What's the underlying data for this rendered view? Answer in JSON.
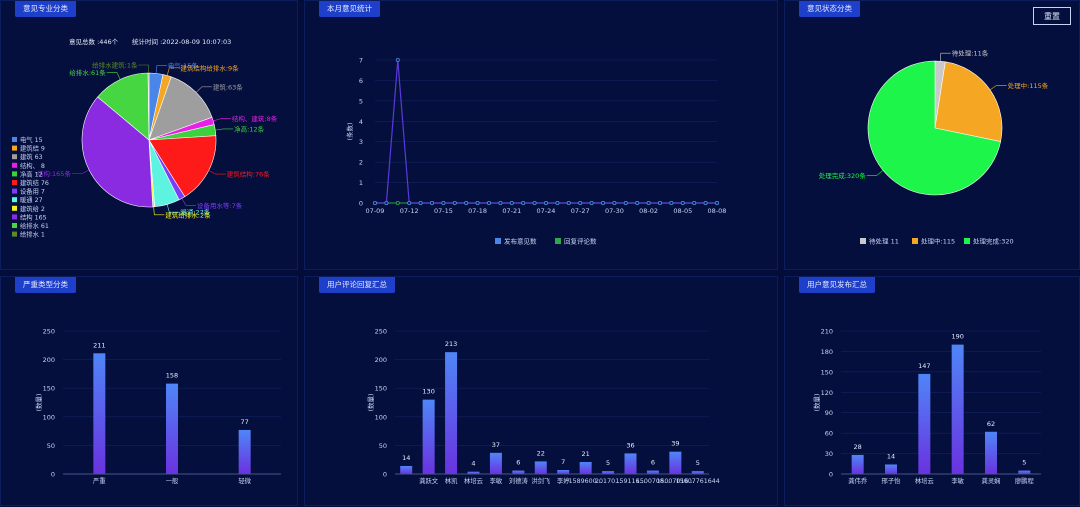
{
  "back_button": "重置",
  "panels": {
    "p1": {
      "title": "意见专业分类",
      "stat_total": "意见总数 :446个",
      "stat_time": "统计时间 :2022-08-09 10:07:03"
    },
    "p2": {
      "title": "本月意见统计"
    },
    "p3": {
      "title": "意见状态分类"
    },
    "p4": {
      "title": "严重类型分类"
    },
    "p5": {
      "title": "用户评论回复汇总"
    },
    "p6": {
      "title": "用户意见发布汇总"
    }
  },
  "chart_data": [
    {
      "type": "pie",
      "slices": [
        {
          "name": "电气",
          "value": 15,
          "color": "#4a86e8",
          "label": "电气:15条",
          "legend": "电气 15"
        },
        {
          "name": "建筑结",
          "value": 9,
          "color": "#f5a623",
          "label": "建筑结构给排水:9条",
          "legend": "建筑结 9"
        },
        {
          "name": "建筑",
          "value": 63,
          "color": "#9e9e9e",
          "label": "建筑:63条",
          "legend": "建筑 63"
        },
        {
          "name": "结构",
          "value": 8,
          "color": "#e91ee9",
          "label": "结构、建筑:8条",
          "legend": "结构、 8"
        },
        {
          "name": "净高",
          "value": 12,
          "color": "#3ed13e",
          "label": "净高:12条",
          "legend": "净高 12"
        },
        {
          "name": "建筑结",
          "value": 76,
          "color": "#ff1a1a",
          "label": "建筑结构:76条",
          "legend": "建筑结 76"
        },
        {
          "name": "设备用",
          "value": 7,
          "color": "#7a3ef5",
          "label": "设备用水等:7条",
          "legend": "设备用 7"
        },
        {
          "name": "暖通",
          "value": 27,
          "color": "#5ef3e0",
          "label": "暖通:27条",
          "legend": "暖通 27"
        },
        {
          "name": "建筑给",
          "value": 2,
          "color": "#f0f020",
          "label": "建筑给排水:2条",
          "legend": "建筑给 2"
        },
        {
          "name": "结构",
          "value": 165,
          "color": "#8a2be2",
          "label": "结构:165条",
          "legend": "结构 165"
        },
        {
          "name": "给排水",
          "value": 61,
          "color": "#45d641",
          "label": "给排水:61条",
          "legend": "给排水 61"
        },
        {
          "name": "给排水",
          "value": 1,
          "color": "#5a8a2a",
          "label": "给排水建筑:1条",
          "legend": "给排水 1"
        }
      ]
    },
    {
      "type": "line",
      "x": [
        "07-09",
        "07-10",
        "07-11",
        "07-12",
        "07-13",
        "07-14",
        "07-15",
        "07-16",
        "07-17",
        "07-18",
        "07-19",
        "07-20",
        "07-21",
        "07-22",
        "07-23",
        "07-24",
        "07-25",
        "07-26",
        "07-27",
        "07-28",
        "07-29",
        "07-30",
        "07-31",
        "08-01",
        "08-02",
        "08-03",
        "08-04",
        "08-05",
        "08-06",
        "08-07",
        "08-08"
      ],
      "x_ticks": [
        "07-09",
        "07-12",
        "07-15",
        "07-18",
        "07-21",
        "07-24",
        "07-27",
        "07-30",
        "08-02",
        "08-05",
        "08-08"
      ],
      "series": [
        {
          "name": "发布意见数",
          "color": "#4a86e8",
          "values": [
            0,
            0,
            7,
            0,
            0,
            0,
            0,
            0,
            0,
            0,
            0,
            0,
            0,
            0,
            0,
            0,
            0,
            0,
            0,
            0,
            0,
            0,
            0,
            0,
            0,
            0,
            0,
            0,
            0,
            0,
            0
          ]
        },
        {
          "name": "回复评论数",
          "color": "#2ea84a",
          "values": [
            0,
            0,
            0,
            0,
            0,
            0,
            0,
            0,
            0,
            0,
            0,
            0,
            0,
            0,
            0,
            0,
            0,
            0,
            0,
            0,
            0,
            0,
            0,
            0,
            0,
            0,
            0,
            0,
            0,
            0,
            0
          ]
        }
      ],
      "ylabel": "(条数)",
      "ylim": [
        0,
        7
      ],
      "y_ticks": [
        "0",
        "1",
        "2",
        "3",
        "4",
        "5",
        "6",
        "7"
      ]
    },
    {
      "type": "pie",
      "slices": [
        {
          "name": "待处理",
          "value": 11,
          "color": "#c9c9c9",
          "label": "待处理:11条",
          "legend": "待处理 11"
        },
        {
          "name": "处理中",
          "value": 115,
          "color": "#f5a623",
          "label": "处理中:115条",
          "legend": "处理中:115"
        },
        {
          "name": "处理完成",
          "value": 320,
          "color": "#1ef54a",
          "label": "处理完成:320条",
          "legend": "处理完成:320"
        }
      ]
    },
    {
      "type": "bar",
      "categories": [
        "严重",
        "一般",
        "轻微"
      ],
      "values": [
        211,
        158,
        77
      ],
      "ylabel": "(数量)",
      "ylim": [
        0,
        250
      ],
      "y_ticks": [
        "0",
        "50",
        "100",
        "150",
        "200",
        "250"
      ]
    },
    {
      "type": "bar",
      "categories": [
        "",
        "龚跃文",
        "林凯",
        "林培云",
        "李敏",
        "刘德涛",
        "洪剑飞",
        "李婷",
        "1589600",
        "20170",
        "159116",
        "1500708",
        "15007016",
        "15007761644"
      ],
      "cat_labels": [
        "",
        "龚跃文",
        "林凯",
        "林培云",
        "李敏",
        "刘德涛",
        "洪剑飞",
        "李婷",
        "1589600...",
        "20170...",
        "159116...",
        "1500708...",
        "15007016...",
        "15007761644"
      ],
      "values": [
        14,
        130,
        213,
        4,
        37,
        6,
        22,
        7,
        21,
        5,
        36,
        6,
        39,
        5
      ],
      "ylabel": "(数量)",
      "ylim": [
        0,
        250
      ],
      "y_ticks": [
        "0",
        "50",
        "100",
        "150",
        "200",
        "250"
      ]
    },
    {
      "type": "bar",
      "categories": [
        "龚伟乔",
        "邢子怡",
        "林培云",
        "李敏",
        "龚灵娴",
        "廖鹏程"
      ],
      "values": [
        28,
        14,
        147,
        190,
        62,
        5
      ],
      "ylabel": "(数量)",
      "ylim": [
        0,
        210
      ],
      "y_ticks": [
        "0",
        "30",
        "60",
        "90",
        "120",
        "150",
        "180",
        "210"
      ]
    }
  ]
}
